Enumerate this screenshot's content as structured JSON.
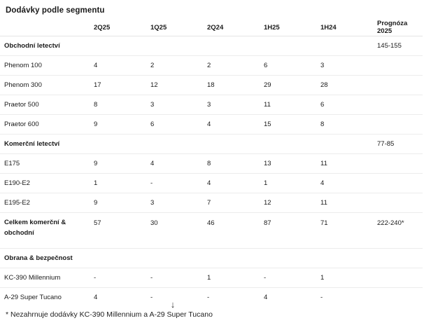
{
  "title": "Dodávky podle segmentu",
  "columns": [
    "",
    "2Q25",
    "1Q25",
    "2Q24",
    "1H25",
    "1H24",
    "Prognóza 2025"
  ],
  "rows": [
    {
      "type": "segment",
      "cells": [
        "Obchodní letectví",
        "",
        "",
        "",
        "",
        "",
        "145-155"
      ]
    },
    {
      "type": "item",
      "cells": [
        "Phenom 100",
        "4",
        "2",
        "2",
        "6",
        "3",
        ""
      ]
    },
    {
      "type": "item",
      "cells": [
        "Phenom 300",
        "17",
        "12",
        "18",
        "29",
        "28",
        ""
      ]
    },
    {
      "type": "item",
      "cells": [
        "Praetor 500",
        "8",
        "3",
        "3",
        "11",
        "6",
        ""
      ]
    },
    {
      "type": "item",
      "cells": [
        "Praetor 600",
        "9",
        "6",
        "4",
        "15",
        "8",
        ""
      ]
    },
    {
      "type": "segment",
      "cells": [
        "Komerční letectví",
        "",
        "",
        "",
        "",
        "",
        "77-85"
      ]
    },
    {
      "type": "item",
      "cells": [
        "E175",
        "9",
        "4",
        "8",
        "13",
        "11",
        ""
      ]
    },
    {
      "type": "item",
      "cells": [
        "E190-E2",
        "1",
        "-",
        "4",
        "1",
        "4",
        ""
      ]
    },
    {
      "type": "item",
      "cells": [
        "E195-E2",
        "9",
        "3",
        "7",
        "12",
        "11",
        ""
      ]
    },
    {
      "type": "total",
      "cells": [
        "Celkem komerční & obchodní",
        "57",
        "30",
        "46",
        "87",
        "71",
        "222-240*"
      ]
    },
    {
      "type": "segment",
      "cells": [
        "Obrana & bezpečnost",
        "",
        "",
        "",
        "",
        "",
        ""
      ]
    },
    {
      "type": "item",
      "cells": [
        "KC-390 Millennium",
        "-",
        "-",
        "1",
        "-",
        "1",
        ""
      ]
    },
    {
      "type": "item",
      "cells": [
        "A-29 Super Tucano",
        "4",
        "-",
        "-",
        "4",
        "-",
        ""
      ]
    }
  ],
  "scroll_icon": "arrow-down-icon",
  "scroll_glyph": "↓",
  "footnote": "* Nezahrnuje dodávky KC-390 Millennium a A-29 Super Tucano"
}
